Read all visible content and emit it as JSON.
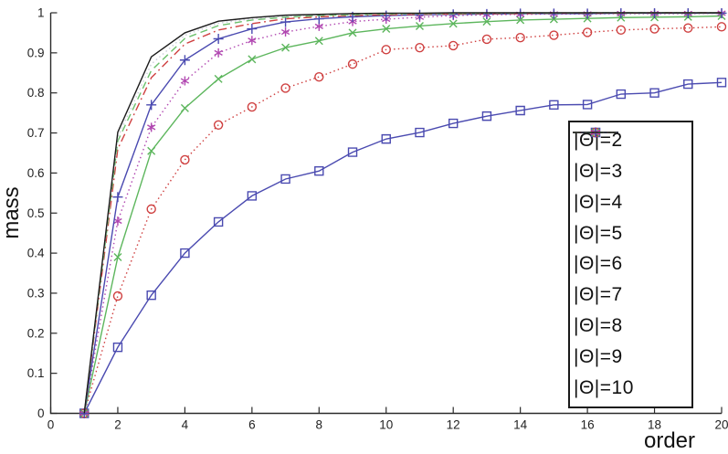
{
  "figure": {
    "background": "#ffffff",
    "axis_color": "#2a2a2a",
    "text_color": "#1a1a1a"
  },
  "chart_data": {
    "type": "line",
    "title": "",
    "xlabel": "order",
    "ylabel": "mass",
    "xlim": [
      0,
      20
    ],
    "ylim": [
      0,
      1
    ],
    "xticks": [
      0,
      2,
      4,
      6,
      8,
      10,
      12,
      14,
      16,
      18,
      20
    ],
    "yticks": [
      0,
      0.1,
      0.2,
      0.3,
      0.4,
      0.5,
      0.6,
      0.7,
      0.8,
      0.9,
      1
    ],
    "ytick_labels": [
      "0",
      "0.1",
      "0.2",
      "0.3",
      "0.4",
      "0.5",
      "0.6",
      "0.7",
      "0.8",
      "0.9",
      "1"
    ],
    "grid": false,
    "legend_position": "inside-lower-right",
    "x": [
      1,
      2,
      3,
      4,
      5,
      6,
      7,
      8,
      9,
      10,
      11,
      12,
      13,
      14,
      15,
      16,
      17,
      18,
      19,
      20
    ],
    "series": [
      {
        "name": "|Θ|=2",
        "color": "#4a4ab0",
        "line_style": "solid",
        "marker": "square",
        "values": [
          0,
          0.165,
          0.295,
          0.4,
          0.478,
          0.543,
          0.585,
          0.605,
          0.652,
          0.685,
          0.701,
          0.724,
          0.742,
          0.756,
          0.77,
          0.771,
          0.797,
          0.8,
          0.822,
          0.826
        ]
      },
      {
        "name": "|Θ|=3",
        "color": "#cf4040",
        "line_style": "dotted",
        "marker": "circle",
        "values": [
          0,
          0.293,
          0.51,
          0.633,
          0.72,
          0.765,
          0.812,
          0.84,
          0.872,
          0.908,
          0.913,
          0.918,
          0.934,
          0.938,
          0.944,
          0.951,
          0.957,
          0.96,
          0.962,
          0.965
        ]
      },
      {
        "name": "|Θ|=4",
        "color": "#5db65d",
        "line_style": "solid",
        "marker": "x",
        "values": [
          0,
          0.39,
          0.655,
          0.762,
          0.835,
          0.884,
          0.913,
          0.93,
          0.95,
          0.96,
          0.967,
          0.973,
          0.978,
          0.982,
          0.984,
          0.986,
          0.988,
          0.989,
          0.99,
          0.992
        ]
      },
      {
        "name": "|Θ|=5",
        "color": "#b148b1",
        "line_style": "dotted",
        "marker": "star",
        "values": [
          0,
          0.48,
          0.714,
          0.83,
          0.9,
          0.931,
          0.952,
          0.966,
          0.978,
          0.984,
          0.989,
          0.993,
          0.995,
          0.996,
          0.997,
          0.997,
          0.998,
          0.998,
          0.998,
          0.999
        ]
      },
      {
        "name": "|Θ|=6",
        "color": "#4a4ab0",
        "line_style": "solid",
        "marker": "plus",
        "values": [
          0,
          0.54,
          0.77,
          0.882,
          0.935,
          0.96,
          0.977,
          0.985,
          0.99,
          0.993,
          0.995,
          0.996,
          0.997,
          0.998,
          0.998,
          0.998,
          0.999,
          0.999,
          0.999,
          0.999
        ]
      },
      {
        "name": "|Θ|=7",
        "color": "#cf4040",
        "line_style": "dashdot",
        "marker": "none",
        "values": [
          0,
          0.66,
          0.838,
          0.922,
          0.957,
          0.973,
          0.985,
          0.99,
          0.993,
          0.995,
          0.996,
          0.997,
          0.998,
          0.998,
          0.999,
          0.999,
          0.999,
          1,
          1,
          1
        ]
      },
      {
        "name": "|Θ|=8",
        "color": "#6cc06c",
        "line_style": "dashed",
        "marker": "none",
        "values": [
          0,
          0.68,
          0.856,
          0.936,
          0.968,
          0.982,
          0.989,
          0.993,
          0.995,
          0.997,
          0.998,
          0.998,
          0.999,
          0.999,
          0.999,
          1,
          1,
          1,
          1,
          1
        ]
      },
      {
        "name": "|Θ|=9",
        "color": "#c9ccd9",
        "line_style": "dotted",
        "marker": "none",
        "values": [
          0,
          0.69,
          0.872,
          0.944,
          0.974,
          0.985,
          0.992,
          0.995,
          0.997,
          0.998,
          0.998,
          0.999,
          0.999,
          1,
          1,
          1,
          1,
          1,
          1,
          1
        ]
      },
      {
        "name": "|Θ|=10",
        "color": "#1c1c1c",
        "line_style": "solid",
        "marker": "none",
        "values": [
          0,
          0.702,
          0.89,
          0.95,
          0.979,
          0.988,
          0.994,
          0.996,
          0.998,
          0.999,
          0.999,
          1,
          1,
          1,
          1,
          1,
          1,
          1,
          1,
          1
        ]
      }
    ]
  }
}
